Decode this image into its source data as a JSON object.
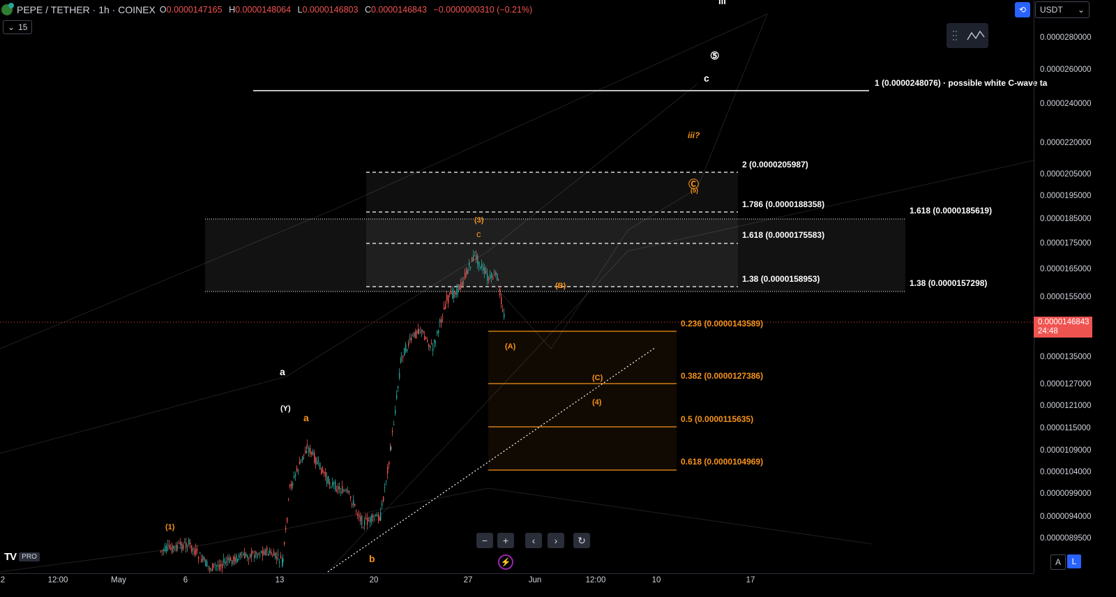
{
  "header": {
    "symbol": "PEPE / TETHER · 1h · COINEX",
    "ohlc": [
      {
        "k": "O",
        "v": "0.0000147165"
      },
      {
        "k": "H",
        "v": "0.0000148064"
      },
      {
        "k": "L",
        "v": "0.0000146803"
      },
      {
        "k": "C",
        "v": "0.0000146843"
      },
      {
        "k": "",
        "v": "−0.0000000310 (−0.21%)"
      }
    ],
    "interval_count": "15"
  },
  "toolbar": {
    "currency": "USDT",
    "currency_arrow": "⌄",
    "sync_icon": "sync-icon"
  },
  "price_axis": {
    "labels": [
      "0.0000280000",
      "0.0000260000",
      "0.0000240000",
      "0.0000220000",
      "0.0000205000",
      "0.0000195000",
      "0.0000185000",
      "0.0000175000",
      "0.0000165000",
      "0.0000155000",
      "0.0000135000",
      "0.0000127000",
      "0.0000121000",
      "0.0000115000",
      "0.0000109000",
      "0.0000104000",
      "0.0000099000",
      "0.0000094000",
      "0.0000089500"
    ],
    "current_price": "0.0000146843",
    "countdown": "24:48"
  },
  "time_axis": {
    "labels": [
      "2",
      "12:00",
      "May",
      "6",
      "13",
      "20",
      "27",
      "Jun",
      "12:00",
      "10",
      "17"
    ]
  },
  "fib_labels": {
    "white": [
      "1 (0.0000248076) · possible white C-wave ta",
      "2 (0.0000205987)",
      "1.786 (0.0000188358)",
      "1.618 (0.0000175583)",
      "1.38 (0.0000158953)",
      "1.618 (0.0000185619)",
      "1.38 (0.0000157298)"
    ],
    "orange": [
      "0.236 (0.0000143589)",
      "0.382 (0.0000127386)",
      "0.5 (0.0000115635)",
      "0.618 (0.0000104969)"
    ]
  },
  "waves": {
    "white": [
      "a",
      "(Y)",
      "c",
      "⑤",
      "iii"
    ],
    "orange": [
      "a",
      "b",
      "(1)",
      "(3)",
      "c",
      "(A)",
      "(B)",
      "(C)",
      "(4)",
      "iii?",
      "Ⓒ",
      "(5)",
      "(3)"
    ]
  },
  "controls": {
    "zoom_out": "−",
    "zoom_in": "+",
    "scroll_left": "‹",
    "scroll_right": "›",
    "reset": "↻"
  },
  "scale_buttons": {
    "auto": "A",
    "log": "L"
  },
  "branding": {
    "tv": "TV",
    "pro": "PRO"
  },
  "colors": {
    "up": "#26a69a",
    "down": "#ef5350",
    "orange": "#f7931a",
    "accent": "#2962ff"
  }
}
